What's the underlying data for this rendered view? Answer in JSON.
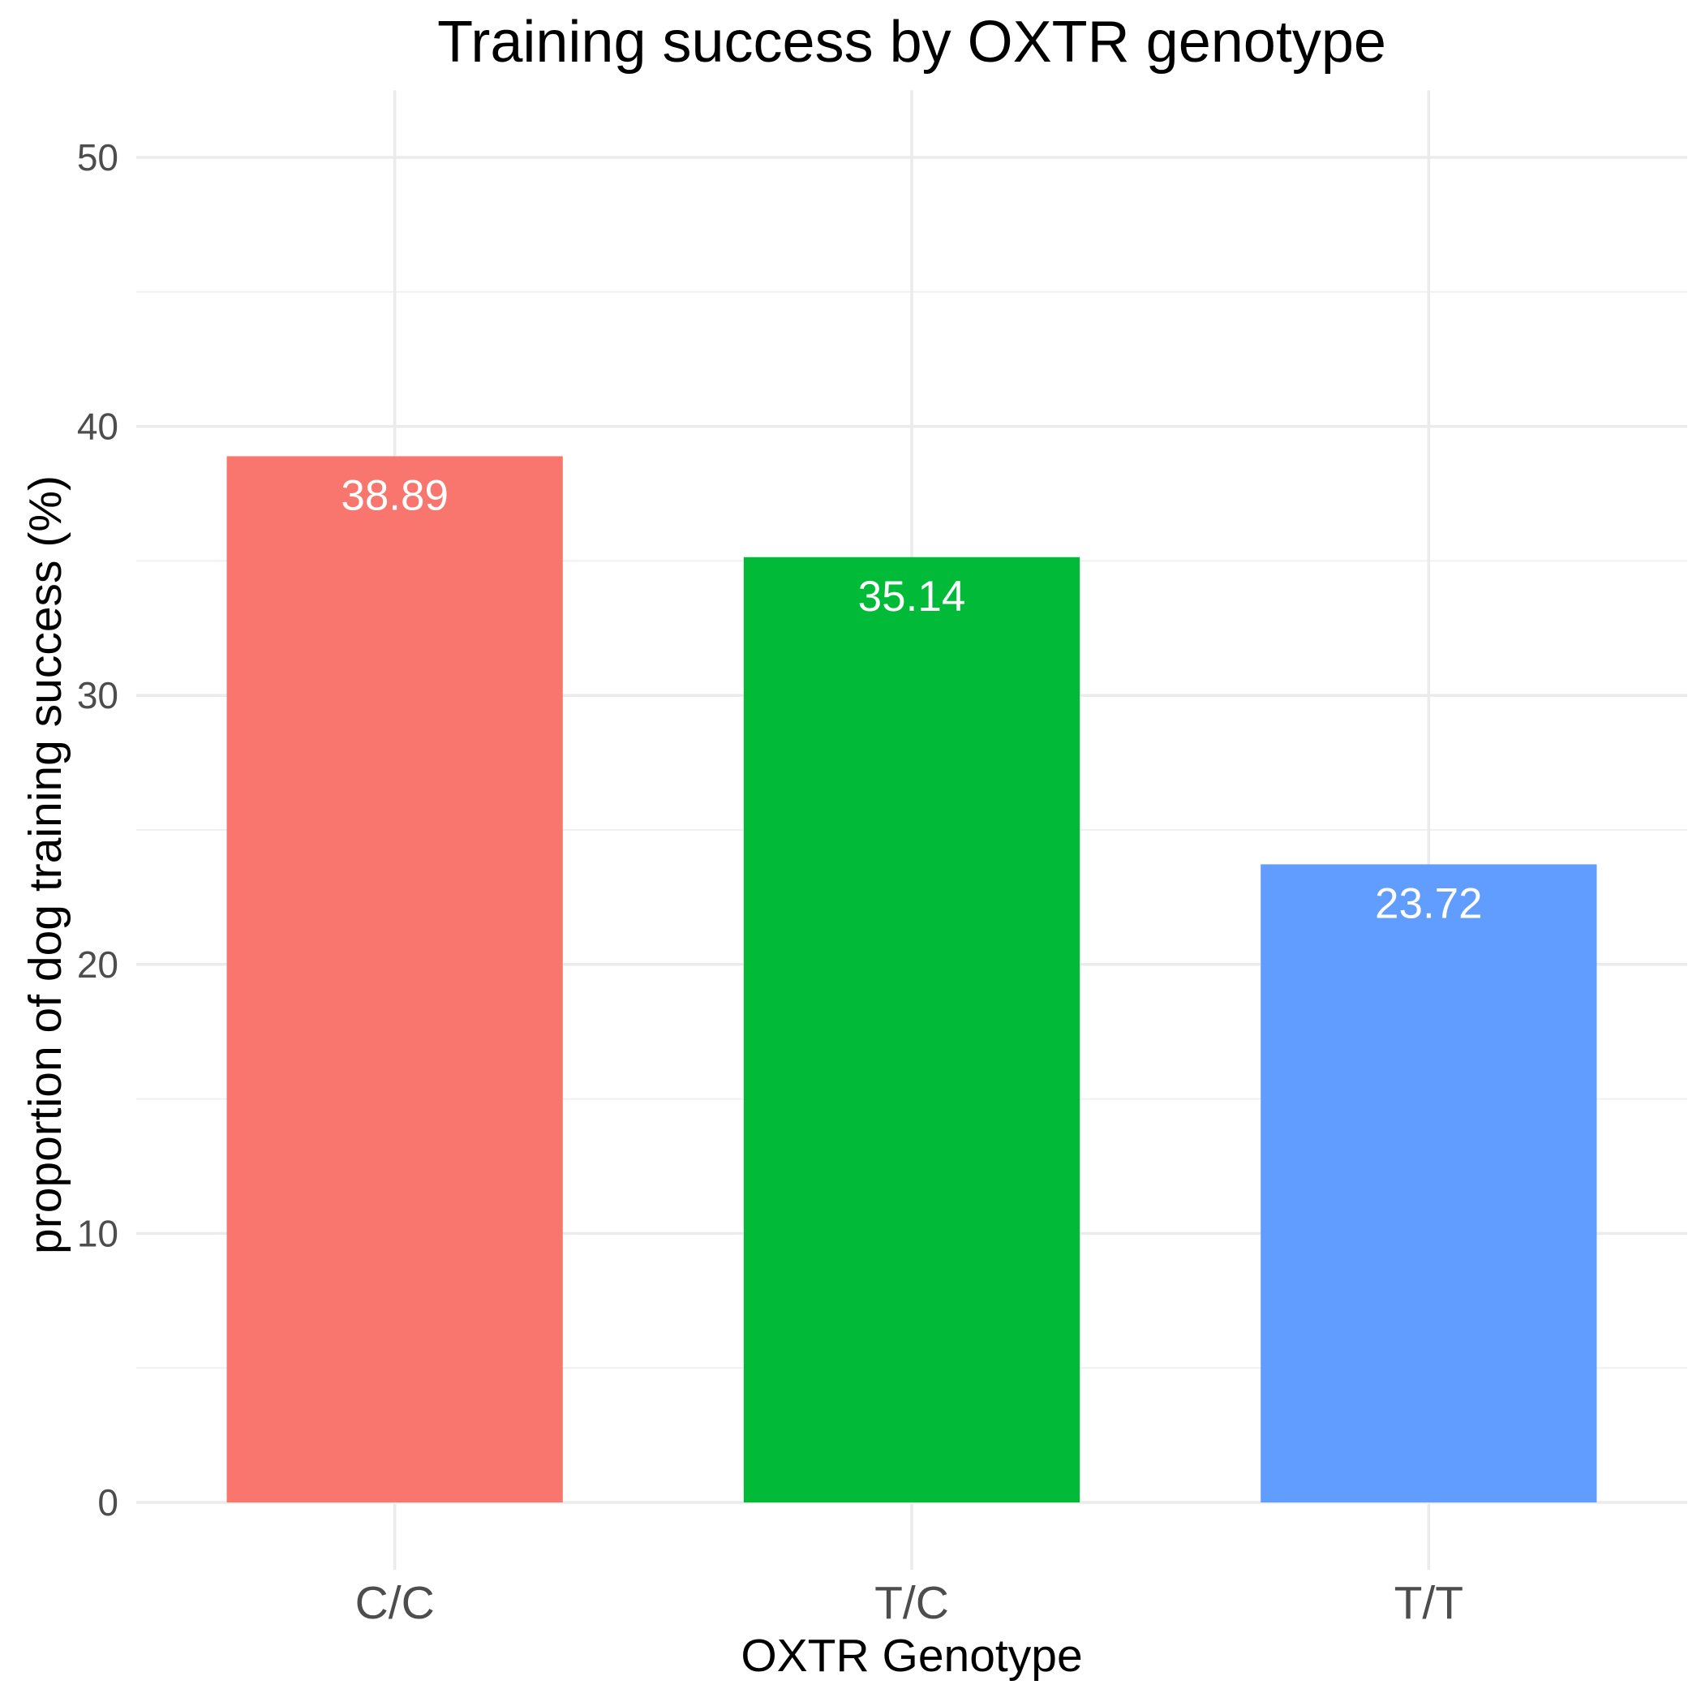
{
  "chart_data": {
    "type": "bar",
    "title": "Training success by OXTR genotype",
    "xlabel": "OXTR Genotype",
    "ylabel": "proportion of dog training success (%)",
    "categories": [
      "C/C",
      "T/C",
      "T/T"
    ],
    "values": [
      38.89,
      35.14,
      23.72
    ],
    "value_labels": [
      "38.89",
      "35.14",
      "23.72"
    ],
    "colors": [
      "#F8766D",
      "#00BA38",
      "#619CFF"
    ],
    "ylim": [
      0,
      52.5
    ],
    "yticks": [
      0,
      10,
      20,
      30,
      40,
      50
    ],
    "ytick_labels": [
      "0",
      "10",
      "20",
      "30",
      "40",
      "50"
    ],
    "grid": true,
    "legend": "none"
  }
}
